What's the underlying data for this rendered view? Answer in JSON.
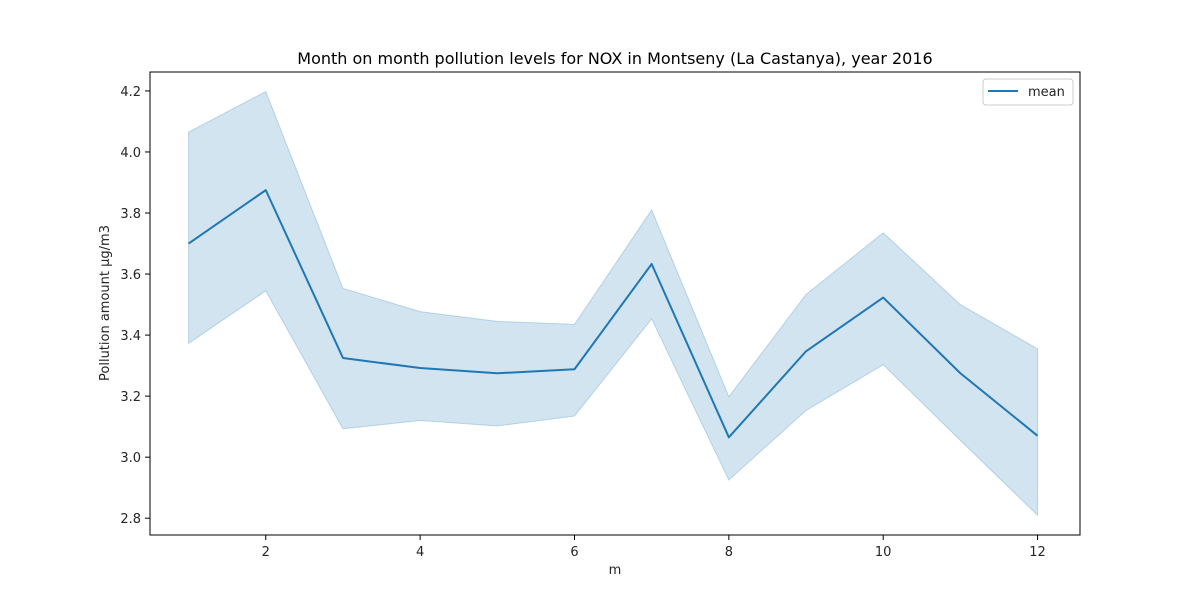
{
  "chart_data": {
    "type": "line",
    "title": "Month on month pollution levels for NOX in Montseny (La Castanya), year 2016",
    "xlabel": "m",
    "ylabel": "Pollution amount µg/m3",
    "x": [
      1,
      2,
      3,
      4,
      5,
      6,
      7,
      8,
      9,
      10,
      11,
      12
    ],
    "xlim": [
      0.5,
      12.55
    ],
    "ylim": [
      2.745,
      4.262
    ],
    "xticks": [
      2,
      4,
      6,
      8,
      10,
      12
    ],
    "yticks": [
      2.8,
      3.0,
      3.2,
      3.4,
      3.6,
      3.8,
      4.0,
      4.2
    ],
    "ytick_labels": [
      "2.8",
      "3.0",
      "3.2",
      "3.4",
      "3.6",
      "3.8",
      "4.0",
      "4.2"
    ],
    "grid": false,
    "legend_position": "top-right",
    "series": [
      {
        "name": "mean",
        "color": "#1f77b4",
        "band_color": "#1f77b4",
        "values": [
          3.7,
          3.875,
          3.325,
          3.292,
          3.275,
          3.288,
          3.633,
          3.065,
          3.347,
          3.523,
          3.275,
          3.07
        ],
        "band_upper": [
          4.065,
          4.198,
          3.553,
          3.477,
          3.445,
          3.435,
          3.81,
          3.198,
          3.533,
          3.735,
          3.5,
          3.355
        ],
        "band_lower": [
          3.373,
          3.545,
          3.093,
          3.12,
          3.102,
          3.135,
          3.453,
          2.925,
          3.153,
          3.303,
          3.055,
          2.81
        ]
      }
    ]
  }
}
